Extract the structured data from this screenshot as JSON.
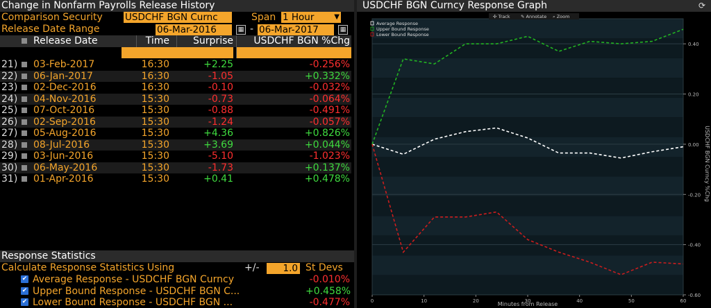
{
  "left_panel": {
    "title": "Change in Nonfarm Payrolls Release History",
    "comparison_label": "Comparison Security",
    "comparison_value": "USDCHF BGN Curnc",
    "span_label": "Span",
    "span_value": "1 Hour",
    "range_label": "Release Date Range",
    "range_start": "06-Mar-2016",
    "range_sep": "-",
    "range_end": "06-Mar-2017",
    "columns": {
      "date": "Release Date",
      "time": "Time",
      "surprise": "Surprise",
      "chg": "USDCHF BGN %Chg"
    },
    "rows": [
      {
        "n": "21)",
        "date": "03-Feb-2017",
        "time": "16:30",
        "surprise": "+2.25",
        "chg": "-0.256%"
      },
      {
        "n": "22)",
        "date": "06-Jan-2017",
        "time": "16:30",
        "surprise": "-1.05",
        "chg": "+0.332%"
      },
      {
        "n": "23)",
        "date": "02-Dec-2016",
        "time": "16:30",
        "surprise": "-0.10",
        "chg": "-0.032%"
      },
      {
        "n": "24)",
        "date": "04-Nov-2016",
        "time": "15:30",
        "surprise": "-0.73",
        "chg": "-0.064%"
      },
      {
        "n": "25)",
        "date": "07-Oct-2016",
        "time": "15:30",
        "surprise": "-0.88",
        "chg": "-0.491%"
      },
      {
        "n": "26)",
        "date": "02-Sep-2016",
        "time": "15:30",
        "surprise": "-1.24",
        "chg": "-0.057%"
      },
      {
        "n": "27)",
        "date": "05-Aug-2016",
        "time": "15:30",
        "surprise": "+4.36",
        "chg": "+0.826%"
      },
      {
        "n": "28)",
        "date": "08-Jul-2016",
        "time": "15:30",
        "surprise": "+3.69",
        "chg": "+0.044%"
      },
      {
        "n": "29)",
        "date": "03-Jun-2016",
        "time": "15:30",
        "surprise": "-5.10",
        "chg": "-1.023%"
      },
      {
        "n": "30)",
        "date": "06-May-2016",
        "time": "15:30",
        "surprise": "-1.73",
        "chg": "+0.137%"
      },
      {
        "n": "31)",
        "date": "01-Apr-2016",
        "time": "15:30",
        "surprise": "+0.41",
        "chg": "+0.478%"
      }
    ],
    "stats_title": "Response Statistics",
    "calc_label": "Calculate Response Statistics Using",
    "pm": "+/-",
    "stdev_value": "1.0",
    "stdev_label": "St Devs",
    "stats": [
      {
        "name": "Average Response - USDCHF BGN Curncy",
        "value": "-0.010%"
      },
      {
        "name": "Upper Bound Response - USDCHF BGN C...",
        "value": "+0.458%"
      },
      {
        "name": "Lower Bound Response - USDCHF BGN ...",
        "value": "-0.477%"
      }
    ]
  },
  "graph": {
    "title": "USDCHF BGN Curncy Response Graph",
    "toolbar": {
      "track": "Track",
      "annotate": "Annotate",
      "zoom": "Zoom"
    },
    "legend": [
      "Average Response",
      "Upper Bound Response",
      "Lower Bound Response"
    ]
  },
  "colors": {
    "orange": "#f4a52b",
    "positive": "#3fdb3f",
    "negative": "#ff2f2f",
    "average": "#ffffff",
    "upper": "#22b322",
    "lower": "#cc1d1d"
  },
  "icons": [
    "calendar-icon",
    "dropdown-arrow-icon",
    "refresh-icon",
    "checkbox-icon"
  ],
  "chart_data": {
    "type": "line",
    "xlabel": "Minutes from Release",
    "ylabel": "USDCHF BGN Curncy %Chg",
    "xlim": [
      0,
      60
    ],
    "ylim": [
      -0.6,
      0.5
    ],
    "xticks": [
      0,
      10,
      20,
      30,
      40,
      50,
      60
    ],
    "xtick_labels": [
      "0",
      "10",
      "20",
      "30",
      "40",
      "50",
      "60"
    ],
    "yticks": [
      0.4,
      0.2,
      0.0,
      -0.2,
      -0.4,
      -0.6
    ],
    "ytick_labels": [
      "0.40",
      "0.20",
      "0.00",
      "-0.20",
      "-0.40",
      "-0.60"
    ],
    "legend_position": "top-left",
    "series": [
      {
        "name": "Average Response",
        "x": [
          0,
          6,
          9,
          12,
          18,
          24,
          30,
          36,
          42,
          48,
          54,
          60
        ],
        "y": [
          0.0,
          -0.04,
          -0.01,
          0.02,
          0.05,
          0.065,
          0.025,
          -0.035,
          -0.035,
          -0.055,
          -0.03,
          -0.01
        ]
      },
      {
        "name": "Upper Bound Response",
        "x": [
          0,
          6,
          9,
          12,
          18,
          24,
          30,
          36,
          42,
          48,
          54,
          60
        ],
        "y": [
          0.0,
          0.34,
          0.33,
          0.32,
          0.4,
          0.4,
          0.43,
          0.37,
          0.41,
          0.4,
          0.41,
          0.458
        ]
      },
      {
        "name": "Lower Bound Response",
        "x": [
          0,
          6,
          9,
          12,
          18,
          24,
          30,
          36,
          42,
          48,
          54,
          60
        ],
        "y": [
          0.0,
          -0.43,
          -0.36,
          -0.29,
          -0.29,
          -0.27,
          -0.38,
          -0.43,
          -0.47,
          -0.52,
          -0.47,
          -0.477
        ]
      }
    ]
  }
}
